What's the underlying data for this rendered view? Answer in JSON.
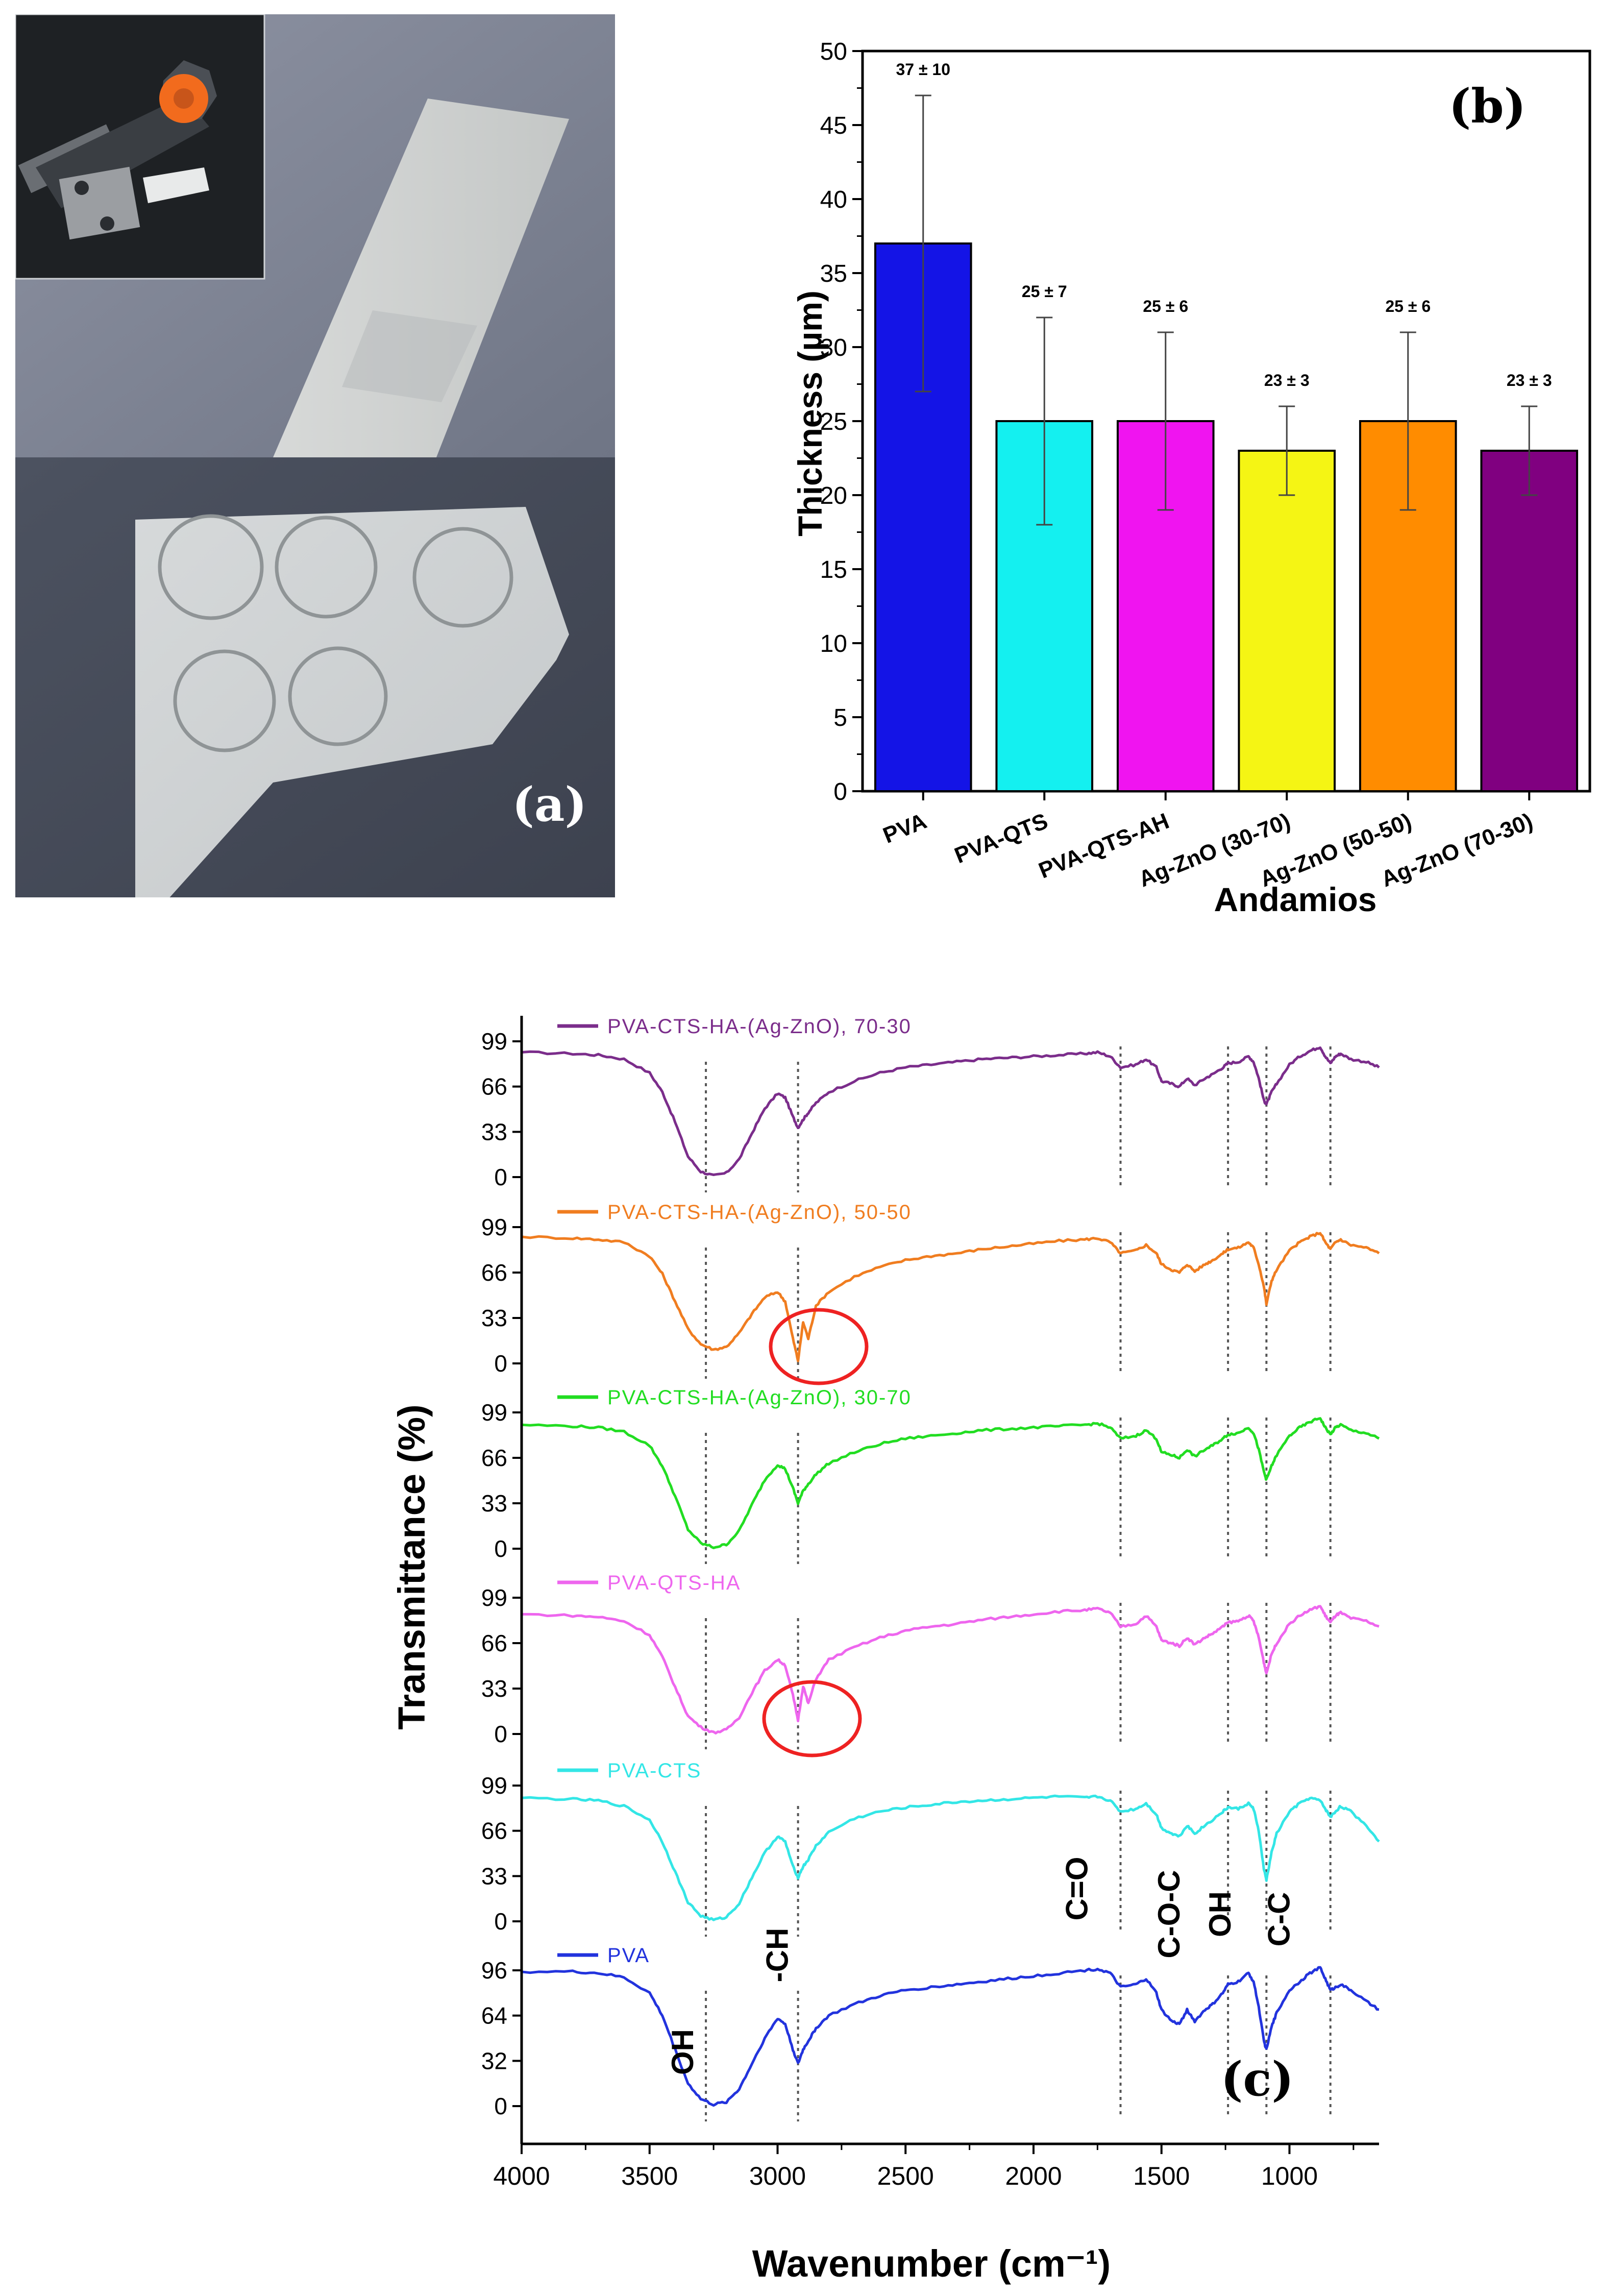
{
  "panel_a": {
    "label": "(a)",
    "circle_count": 5
  },
  "panel_b": {
    "label": "(b)"
  },
  "panel_c": {
    "label": "(c)",
    "band_labels": [
      "OH",
      "-CH",
      "C=O",
      "C-O-C",
      "OH",
      "C-C"
    ]
  },
  "chart_data": [
    {
      "type": "bar",
      "categories": [
        "PVA",
        "PVA-QTS",
        "PVA-QTS-AH",
        "Ag-ZnO (30-70)",
        "Ag-ZnO (50-50)",
        "Ag-ZnO (70-30)"
      ],
      "values": [
        37,
        25,
        25,
        23,
        25,
        23
      ],
      "errors": [
        10,
        7,
        6,
        3,
        6,
        3
      ],
      "value_labels": [
        "37 ± 10",
        "25 ± 7",
        "25 ± 6",
        "23 ± 3",
        "25 ± 6",
        "23 ± 3"
      ],
      "colors": [
        "#1414e6",
        "#14f0f0",
        "#f014f0",
        "#f5f514",
        "#ff8c00",
        "#800080"
      ],
      "xlabel": "Andamios",
      "ylabel": "Thickness (µm)",
      "ylim": [
        0,
        50
      ],
      "yticks": [
        0,
        5,
        10,
        15,
        20,
        25,
        30,
        35,
        40,
        45,
        50
      ],
      "grid": false
    },
    {
      "type": "line",
      "xlabel": "Wavenumber (cm⁻¹)",
      "ylabel": "Transmittance (%)",
      "xlim": [
        4000,
        650
      ],
      "xticks": [
        4000,
        3500,
        3000,
        2500,
        2000,
        1500,
        1000
      ],
      "reference_lines": [
        3280,
        2920,
        1660,
        1240,
        1090,
        840
      ],
      "series": [
        {
          "name": "PVA-CTS-HA-(Ag-ZnO), 70-30",
          "color": "#7b2d8b",
          "yticks": [
            0,
            33,
            66,
            99
          ],
          "x": [
            4000,
            3800,
            3700,
            3600,
            3500,
            3450,
            3400,
            3350,
            3300,
            3250,
            3200,
            3150,
            3100,
            3050,
            3000,
            2970,
            2940,
            2920,
            2900,
            2880,
            2850,
            2800,
            2700,
            2600,
            2500,
            2400,
            2300,
            2200,
            2100,
            2000,
            1900,
            1800,
            1750,
            1700,
            1660,
            1600,
            1560,
            1520,
            1500,
            1460,
            1430,
            1400,
            1370,
            1330,
            1300,
            1260,
            1240,
            1200,
            1160,
            1140,
            1120,
            1100,
            1090,
            1070,
            1050,
            1000,
            960,
            920,
            880,
            860,
            840,
            820,
            800,
            760,
            700,
            650
          ],
          "y": [
            91,
            90,
            89,
            86,
            76,
            62,
            40,
            15,
            4,
            1,
            3,
            13,
            32,
            50,
            61,
            58,
            44,
            36,
            42,
            47,
            54,
            62,
            70,
            76,
            80,
            82,
            84,
            86,
            87,
            88,
            89,
            90,
            91,
            88,
            80,
            82,
            86,
            80,
            70,
            68,
            66,
            72,
            67,
            72,
            75,
            80,
            83,
            84,
            88,
            84,
            72,
            56,
            53,
            62,
            68,
            82,
            88,
            92,
            95,
            88,
            83,
            88,
            90,
            86,
            84,
            80
          ]
        },
        {
          "name": "PVA-CTS-HA-(Ag-ZnO), 50-50",
          "color": "#f07d20",
          "yticks": [
            0,
            33,
            66,
            99
          ],
          "x": [
            4000,
            3800,
            3700,
            3600,
            3500,
            3450,
            3400,
            3350,
            3300,
            3250,
            3200,
            3150,
            3100,
            3050,
            3000,
            2970,
            2940,
            2920,
            2900,
            2880,
            2850,
            2800,
            2700,
            2600,
            2500,
            2400,
            2300,
            2200,
            2100,
            2000,
            1900,
            1800,
            1750,
            1700,
            1660,
            1600,
            1560,
            1520,
            1500,
            1460,
            1430,
            1400,
            1370,
            1330,
            1300,
            1260,
            1240,
            1200,
            1160,
            1140,
            1120,
            1100,
            1090,
            1070,
            1050,
            1000,
            960,
            920,
            880,
            860,
            840,
            820,
            800,
            760,
            700,
            650
          ],
          "y": [
            92,
            91,
            90,
            88,
            78,
            65,
            45,
            25,
            14,
            10,
            12,
            22,
            36,
            48,
            52,
            45,
            18,
            2,
            30,
            18,
            42,
            52,
            63,
            70,
            75,
            78,
            80,
            83,
            85,
            87,
            89,
            90,
            91,
            88,
            80,
            82,
            86,
            80,
            72,
            68,
            66,
            72,
            67,
            72,
            75,
            80,
            83,
            84,
            88,
            84,
            72,
            56,
            43,
            60,
            68,
            82,
            88,
            92,
            95,
            88,
            83,
            88,
            90,
            86,
            84,
            80
          ]
        },
        {
          "name": "PVA-CTS-HA-(Ag-ZnO), 30-70",
          "color": "#22dd22",
          "yticks": [
            0,
            33,
            66,
            99
          ],
          "x": [
            4000,
            3800,
            3700,
            3600,
            3500,
            3450,
            3400,
            3350,
            3300,
            3250,
            3200,
            3150,
            3100,
            3050,
            3000,
            2970,
            2940,
            2920,
            2900,
            2880,
            2850,
            2800,
            2700,
            2600,
            2500,
            2400,
            2300,
            2200,
            2100,
            2000,
            1900,
            1800,
            1750,
            1700,
            1660,
            1600,
            1560,
            1520,
            1500,
            1460,
            1430,
            1400,
            1370,
            1330,
            1300,
            1260,
            1240,
            1200,
            1160,
            1140,
            1120,
            1100,
            1090,
            1070,
            1050,
            1000,
            960,
            920,
            880,
            860,
            840,
            820,
            800,
            760,
            700,
            650
          ],
          "y": [
            90,
            89,
            88,
            85,
            75,
            60,
            38,
            14,
            4,
            1,
            3,
            13,
            32,
            50,
            61,
            58,
            44,
            33,
            42,
            47,
            54,
            62,
            70,
            76,
            80,
            82,
            84,
            86,
            87,
            88,
            89,
            90,
            91,
            88,
            80,
            82,
            86,
            80,
            70,
            68,
            66,
            72,
            67,
            72,
            75,
            80,
            83,
            84,
            88,
            84,
            72,
            56,
            50,
            60,
            68,
            82,
            88,
            92,
            95,
            88,
            83,
            88,
            90,
            86,
            84,
            80
          ]
        },
        {
          "name": "PVA-QTS-HA",
          "color": "#ee66ee",
          "yticks": [
            0,
            33,
            66,
            99
          ],
          "x": [
            4000,
            3800,
            3700,
            3600,
            3500,
            3450,
            3400,
            3350,
            3300,
            3250,
            3200,
            3150,
            3100,
            3050,
            3000,
            2970,
            2940,
            2920,
            2900,
            2880,
            2850,
            2800,
            2700,
            2600,
            2500,
            2400,
            2300,
            2200,
            2100,
            2000,
            1900,
            1800,
            1750,
            1700,
            1660,
            1600,
            1560,
            1520,
            1500,
            1460,
            1430,
            1400,
            1370,
            1330,
            1300,
            1260,
            1240,
            1200,
            1160,
            1140,
            1120,
            1100,
            1090,
            1070,
            1050,
            1000,
            960,
            920,
            880,
            860,
            840,
            820,
            800,
            760,
            700,
            650
          ],
          "y": [
            87,
            86,
            85,
            82,
            72,
            56,
            34,
            13,
            5,
            1,
            3,
            12,
            30,
            46,
            54,
            50,
            28,
            10,
            35,
            22,
            40,
            54,
            63,
            70,
            75,
            78,
            80,
            83,
            85,
            87,
            89,
            90,
            91,
            88,
            78,
            80,
            86,
            78,
            68,
            66,
            64,
            70,
            65,
            70,
            73,
            78,
            81,
            82,
            86,
            82,
            70,
            52,
            44,
            58,
            66,
            80,
            86,
            90,
            93,
            86,
            81,
            86,
            88,
            84,
            82,
            78
          ]
        },
        {
          "name": "PVA-CTS",
          "color": "#33e6e6",
          "yticks": [
            0,
            33,
            66,
            99
          ],
          "x": [
            4000,
            3800,
            3700,
            3600,
            3500,
            3450,
            3400,
            3350,
            3300,
            3250,
            3200,
            3150,
            3100,
            3050,
            3000,
            2970,
            2940,
            2920,
            2900,
            2880,
            2850,
            2800,
            2700,
            2600,
            2500,
            2400,
            2300,
            2200,
            2100,
            2000,
            1900,
            1800,
            1750,
            1700,
            1660,
            1600,
            1560,
            1520,
            1500,
            1460,
            1430,
            1400,
            1370,
            1330,
            1300,
            1260,
            1240,
            1200,
            1160,
            1140,
            1120,
            1100,
            1090,
            1070,
            1050,
            1000,
            960,
            920,
            880,
            860,
            840,
            820,
            800,
            760,
            700,
            650
          ],
          "y": [
            90,
            89,
            88,
            84,
            74,
            58,
            36,
            14,
            4,
            1,
            3,
            13,
            32,
            50,
            62,
            58,
            40,
            32,
            40,
            45,
            55,
            65,
            75,
            80,
            83,
            85,
            87,
            88,
            89,
            90,
            91,
            90,
            91,
            88,
            80,
            82,
            86,
            78,
            68,
            64,
            62,
            70,
            64,
            70,
            74,
            80,
            83,
            82,
            86,
            82,
            66,
            38,
            30,
            50,
            64,
            80,
            86,
            90,
            88,
            82,
            76,
            80,
            84,
            80,
            70,
            58
          ]
        },
        {
          "name": "PVA",
          "color": "#2233dd",
          "yticks": [
            0,
            32,
            64,
            96
          ],
          "x": [
            4000,
            3800,
            3700,
            3600,
            3500,
            3450,
            3400,
            3350,
            3300,
            3250,
            3200,
            3150,
            3100,
            3050,
            3000,
            2970,
            2940,
            2920,
            2900,
            2880,
            2850,
            2800,
            2700,
            2600,
            2500,
            2400,
            2300,
            2200,
            2100,
            2000,
            1900,
            1800,
            1750,
            1700,
            1660,
            1600,
            1560,
            1520,
            1500,
            1460,
            1430,
            1400,
            1370,
            1330,
            1300,
            1260,
            1240,
            1200,
            1160,
            1140,
            1120,
            1100,
            1090,
            1070,
            1050,
            1000,
            960,
            920,
            880,
            860,
            840,
            820,
            800,
            760,
            700,
            650
          ],
          "y": [
            95,
            95,
            94,
            91,
            80,
            64,
            40,
            16,
            5,
            1,
            3,
            12,
            30,
            48,
            62,
            58,
            40,
            30,
            40,
            46,
            55,
            64,
            72,
            78,
            82,
            84,
            86,
            88,
            90,
            92,
            94,
            96,
            97,
            94,
            84,
            86,
            90,
            80,
            68,
            60,
            58,
            68,
            60,
            68,
            72,
            80,
            86,
            88,
            94,
            88,
            70,
            46,
            40,
            56,
            66,
            82,
            88,
            94,
            98,
            90,
            82,
            84,
            86,
            82,
            74,
            68
          ]
        }
      ]
    }
  ]
}
